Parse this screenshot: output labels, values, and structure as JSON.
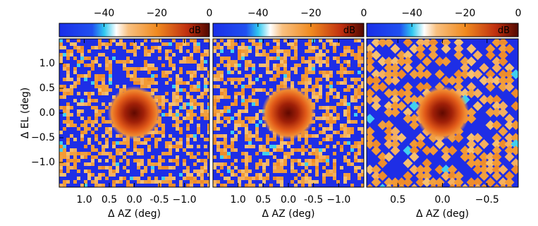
{
  "chart_data": [
    {
      "type": "heatmap",
      "xlabel": "Δ AZ (deg)",
      "ylabel": "Δ EL (deg)",
      "xlim": [
        1.5,
        -1.5
      ],
      "ylim": [
        -1.5,
        1.5
      ],
      "xticks": [
        {
          "value": 1,
          "label": "1.0"
        },
        0.5,
        {
          "value": 0,
          "label": "0.0"
        },
        -0.5,
        {
          "value": -1,
          "label": "−1.0"
        }
      ],
      "yticks": [
        {
          "value": 1,
          "label": "1.0"
        },
        0.5,
        {
          "value": 0,
          "label": "0.0"
        },
        {
          "value": -0.5,
          "label": "−0.5"
        },
        {
          "value": -1,
          "label": "−1.0"
        }
      ],
      "colorbar": {
        "label": "dB",
        "lim": [
          -57,
          0
        ],
        "ticks": [
          {
            "value": -40,
            "label": "−40"
          },
          {
            "value": -20,
            "label": "−20"
          },
          0
        ]
      }
    },
    {
      "type": "heatmap",
      "xlabel": "Δ AZ (deg)",
      "xlim": [
        1.5,
        -1.5
      ],
      "ylim": [
        -1.5,
        1.5
      ],
      "xticks": [
        {
          "value": 1,
          "label": "1.0"
        },
        0.5,
        {
          "value": 0,
          "label": "0.0"
        },
        -0.5,
        {
          "value": -1,
          "label": "−1.0"
        }
      ],
      "colorbar": {
        "label": "dB",
        "lim": [
          -57,
          0
        ],
        "ticks": [
          {
            "value": -40,
            "label": "−40"
          },
          {
            "value": -20,
            "label": "−20"
          },
          0
        ]
      }
    },
    {
      "type": "heatmap",
      "xlabel": "Δ AZ (deg)",
      "xlim": [
        0.85,
        -0.85
      ],
      "ylim": [
        -1.5,
        1.5
      ],
      "xticks": [
        0.5,
        {
          "value": 0,
          "label": "0.0"
        },
        {
          "value": -0.5,
          "label": "−0.5"
        }
      ],
      "colorbar": {
        "label": "dB",
        "lim": [
          -57,
          0
        ],
        "ticks": [
          {
            "value": -40,
            "label": "−40"
          },
          {
            "value": -20,
            "label": "−20"
          },
          0
        ]
      }
    }
  ]
}
